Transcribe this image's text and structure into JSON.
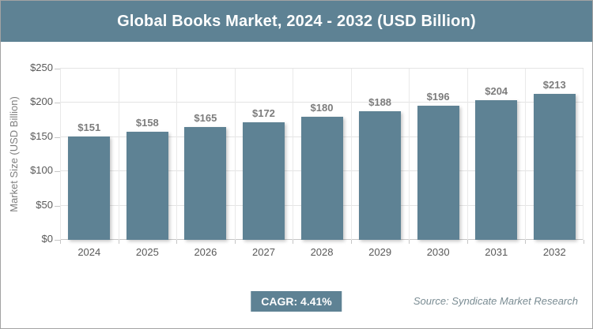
{
  "header": {
    "title": "Global Books Market, 2024 - 2032 (USD Billion)"
  },
  "chart_data": {
    "type": "bar",
    "categories": [
      "2024",
      "2025",
      "2026",
      "2027",
      "2028",
      "2029",
      "2030",
      "2031",
      "2032"
    ],
    "values": [
      151,
      158,
      165,
      172,
      180,
      188,
      196,
      204,
      213
    ],
    "value_labels": [
      "$151",
      "$158",
      "$165",
      "$172",
      "$180",
      "$188",
      "$196",
      "$204",
      "$213"
    ],
    "title": "Global Books Market, 2024 - 2032 (USD Billion)",
    "xlabel": "",
    "ylabel": "Market Size (USD Billion)",
    "ylim": [
      0,
      250
    ],
    "y_ticks": [
      0,
      50,
      100,
      150,
      200,
      250
    ],
    "y_tick_labels": [
      "$0",
      "$50",
      "$100",
      "$150",
      "$200",
      "$250"
    ],
    "grid": true,
    "legend": "none",
    "bar_color": "#5E8294"
  },
  "footer": {
    "cagr_label": "CAGR: 4.41%",
    "source": "Source: Syndicate Market Research"
  },
  "colors": {
    "accent": "#5E8294",
    "frame_border": "#A3A3A3",
    "gridline": "#E4E4E4",
    "axis_line": "#C6C6C6",
    "tick_text": "#595959",
    "value_text": "#7C7C7C",
    "source_text": "#7A8C93",
    "title_text": "#FFFFFF"
  }
}
